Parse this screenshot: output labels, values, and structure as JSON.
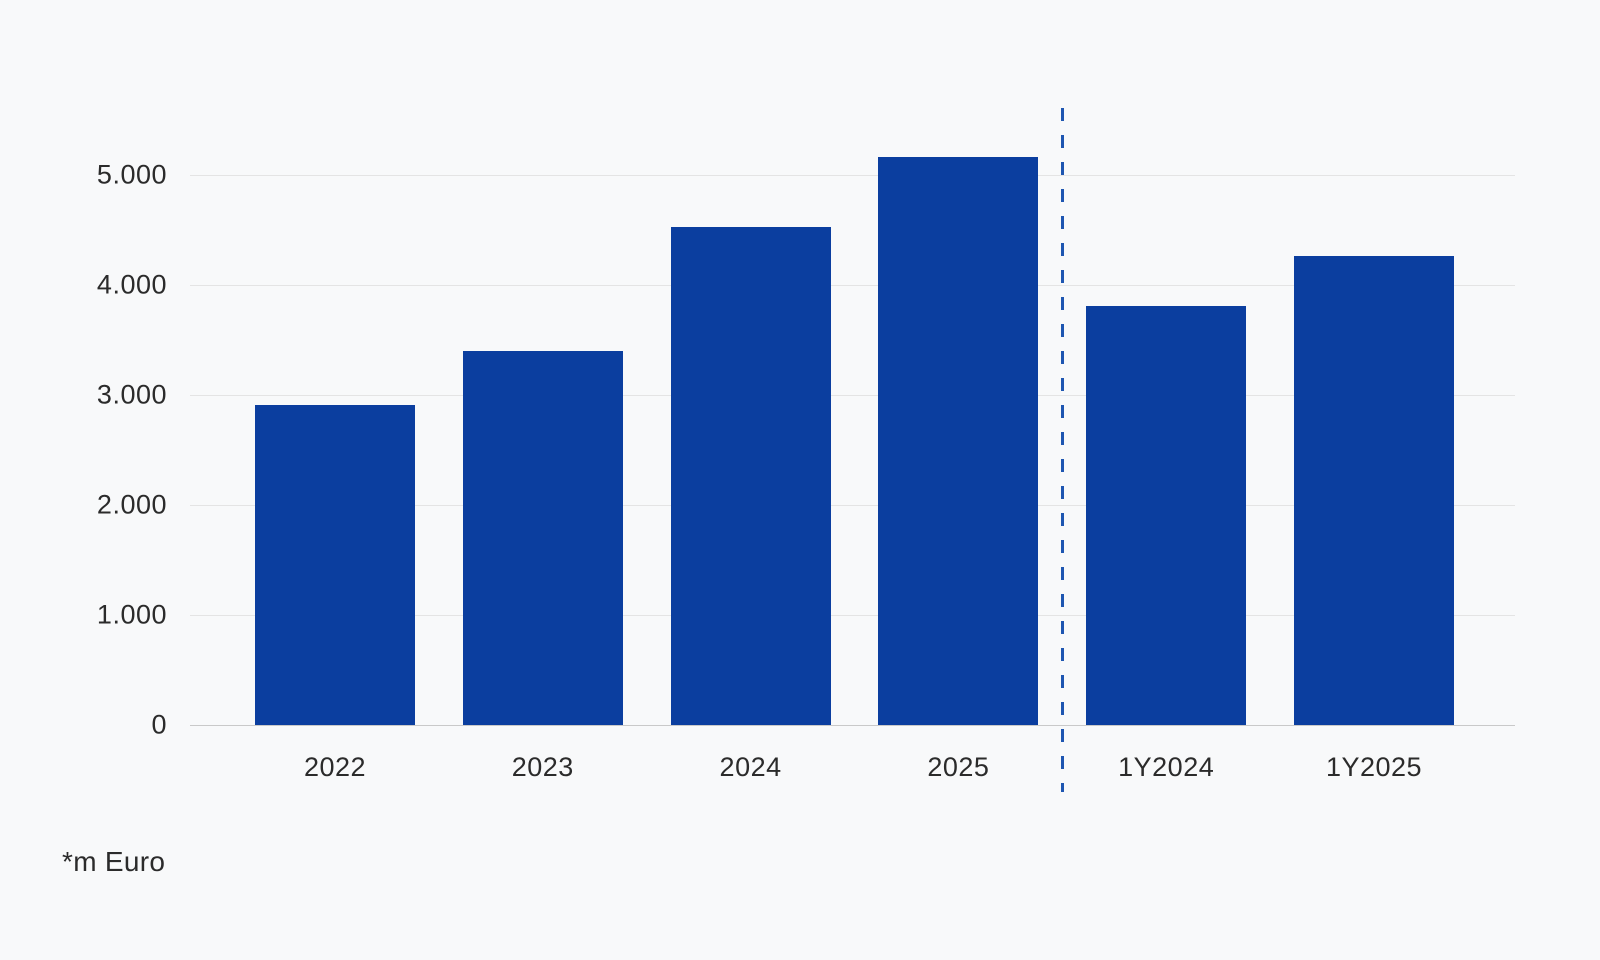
{
  "chart_data": {
    "type": "bar",
    "categories": [
      "2022",
      "2023",
      "2024",
      "2025",
      "1Y2024",
      "1Y2025"
    ],
    "values": [
      2910,
      3400,
      4530,
      5160,
      3810,
      4260
    ],
    "title": "",
    "xlabel": "",
    "ylabel": "",
    "ylim": [
      0,
      5500
    ],
    "yticks": [
      0,
      1000,
      2000,
      3000,
      4000,
      5000
    ],
    "ytick_labels": [
      "0",
      "1.000",
      "2.000",
      "3.000",
      "4.000",
      "5.000"
    ],
    "grid": true,
    "legend": false,
    "separator_after_index": 3,
    "bar_color": "#0b3e9f",
    "separator_color": "#1e56b1",
    "background_color": "#f8f9fa",
    "gridline_color": "#e4e4e4",
    "zero_line_color": "#c9c9c9",
    "text_color": "#2b2b2b"
  },
  "footer": {
    "note": "*m Euro"
  }
}
